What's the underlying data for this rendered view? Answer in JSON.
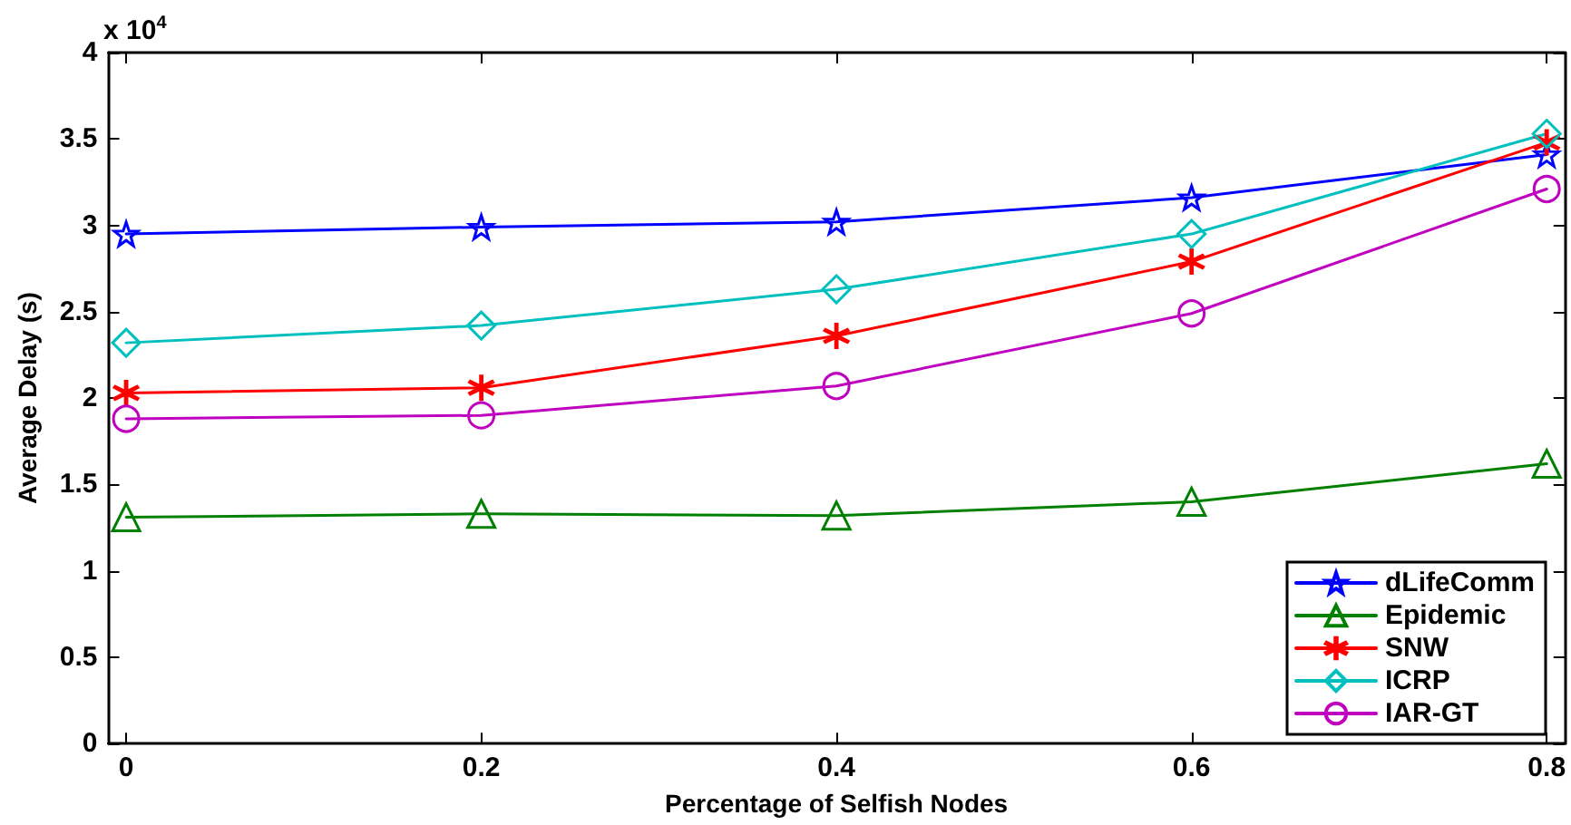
{
  "chart_data": {
    "type": "line",
    "xlabel": "Percentage of Selfish Nodes",
    "ylabel": "Average Delay (s)",
    "annotations": [
      "x 10$^{4}$"
    ],
    "x": [
      0,
      0.2,
      0.4,
      0.6,
      0.8
    ],
    "series": [
      {
        "name": "dLifeComm",
        "color": "#0000ff",
        "marker": "star",
        "values": [
          2.95,
          2.99,
          3.02,
          3.16,
          3.41
        ]
      },
      {
        "name": "Epidemic",
        "color": "#008000",
        "marker": "triangle",
        "values": [
          1.31,
          1.33,
          1.32,
          1.4,
          1.62
        ]
      },
      {
        "name": "SNW",
        "color": "#ff0000",
        "marker": "cross",
        "values": [
          2.03,
          2.06,
          2.36,
          2.79,
          3.48
        ]
      },
      {
        "name": "ICRP",
        "color": "#00bfbf",
        "marker": "diamond",
        "values": [
          2.32,
          2.42,
          2.63,
          2.95,
          3.53
        ]
      },
      {
        "name": "IAR-GT",
        "color": "#bf00bf",
        "marker": "circle",
        "values": [
          1.88,
          1.9,
          2.07,
          2.49,
          3.21
        ]
      }
    ],
    "xlim": [
      -0.01,
      0.81
    ],
    "xticks": [
      0,
      0.2,
      0.4,
      0.6,
      0.8
    ],
    "ylim": [
      0,
      4
    ],
    "yticks": [
      0,
      0.5,
      1,
      1.5,
      2,
      2.5,
      3,
      3.5,
      4
    ],
    "grid": false,
    "legend": "bottom right",
    "line_style": "solid"
  }
}
